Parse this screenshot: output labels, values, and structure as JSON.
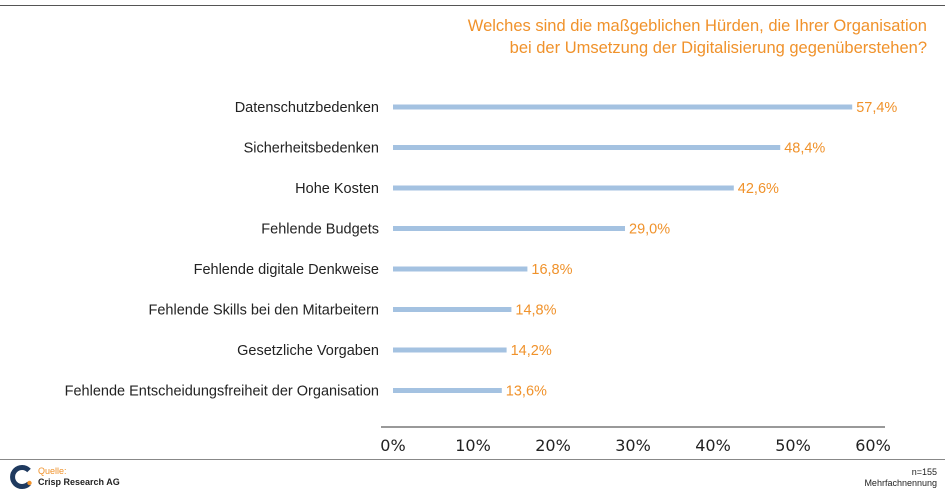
{
  "title": {
    "line1": "Welches sind die maßgeblichen Hürden, die Ihrer Organisation",
    "line2": "bei der Umsetzung der Digitalisierung gegenüberstehen?"
  },
  "chart_data": {
    "type": "bar",
    "orientation": "horizontal",
    "categories": [
      "Datenschutzbedenken",
      "Sicherheitsbedenken",
      "Hohe Kosten",
      "Fehlende Budgets",
      "Fehlende digitale Denkweise",
      "Fehlende Skills bei den Mitarbeitern",
      "Gesetzliche Vorgaben",
      "Fehlende Entscheidungsfreiheit der Organisation"
    ],
    "values": [
      57.4,
      48.4,
      42.6,
      29.0,
      16.8,
      14.8,
      14.2,
      13.6
    ],
    "value_labels": [
      "57,4%",
      "48,4%",
      "42,6%",
      "29,0%",
      "16,8%",
      "14,8%",
      "14,2%",
      "13,6%"
    ],
    "xlim": [
      0,
      60
    ],
    "x_ticks": [
      "0%",
      "10%",
      "20%",
      "30%",
      "40%",
      "50%",
      "60%"
    ],
    "grid": false,
    "colors": {
      "bar": "#a4c2e1",
      "value_label": "#f0922b",
      "title": "#f0922b"
    }
  },
  "footer": {
    "source_label": "Quelle:",
    "source_value": "Crisp Research AG",
    "sample": "n=155",
    "note": "Mehrfachnennung"
  }
}
